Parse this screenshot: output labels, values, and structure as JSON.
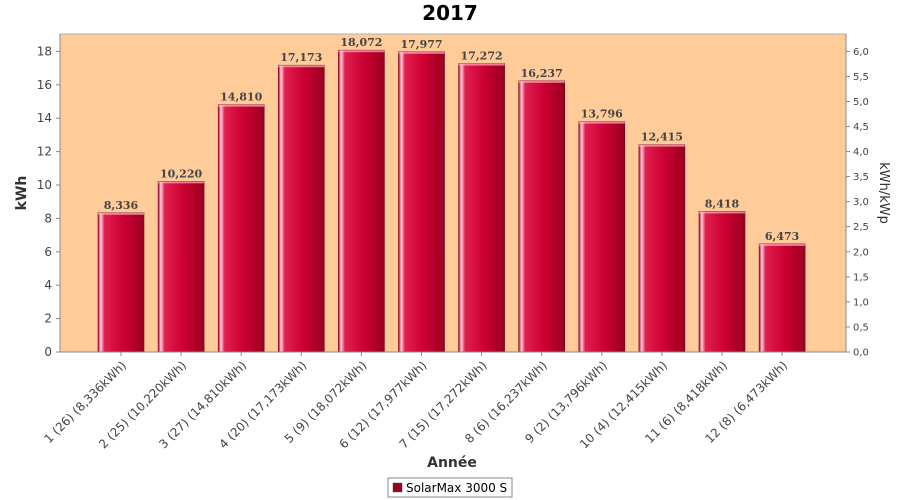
{
  "chart_data": {
    "type": "bar",
    "title": "2017",
    "xlabel": "Année",
    "ylabel": "kWh",
    "y2label": "kWh/kWp",
    "ylim": [
      0,
      19
    ],
    "y2lim": [
      0,
      6.333
    ],
    "yticks": [
      "0",
      "2",
      "4",
      "6",
      "8",
      "10",
      "12",
      "14",
      "16",
      "18"
    ],
    "y2ticks": [
      "0,0",
      "0,5",
      "1,0",
      "1,5",
      "2,0",
      "2,5",
      "3,0",
      "3,5",
      "4,0",
      "4,5",
      "5,0",
      "5,5",
      "6,0"
    ],
    "categories": [
      "1 (26)  (8,336kWh)",
      "2 (25)  (10,220kWh)",
      "3 (27)  (14,810kWh)",
      "4 (20)  (17,173kWh)",
      "5 (9)  (18,072kWh)",
      "6 (12)  (17,977kWh)",
      "7 (15)  (17,272kWh)",
      "8 (6)  (16,237kWh)",
      "9 (2)  (13,796kWh)",
      "10 (4)  (12,415kWh)",
      "11 (6)  (8,418kWh)",
      "12 (8)  (6,473kWh)"
    ],
    "series": [
      {
        "name": "SolarMax 3000 S",
        "values": [
          8.336,
          10.22,
          14.81,
          17.173,
          18.072,
          17.977,
          17.272,
          16.237,
          13.796,
          12.415,
          8.418,
          6.473
        ],
        "labels": [
          "8,336",
          "10,220",
          "14,810",
          "17,173",
          "18,072",
          "17,977",
          "17,272",
          "16,237",
          "13,796",
          "12,415",
          "8,418",
          "6,473"
        ]
      }
    ],
    "grid": false,
    "legend_position": "bottom"
  },
  "colors": {
    "plot_background": "#ffcc99",
    "bar": "#cc0033",
    "bar_dark": "#99001f",
    "bar_highlight": "#ffd0dc",
    "legend_swatch": "#99001f"
  }
}
